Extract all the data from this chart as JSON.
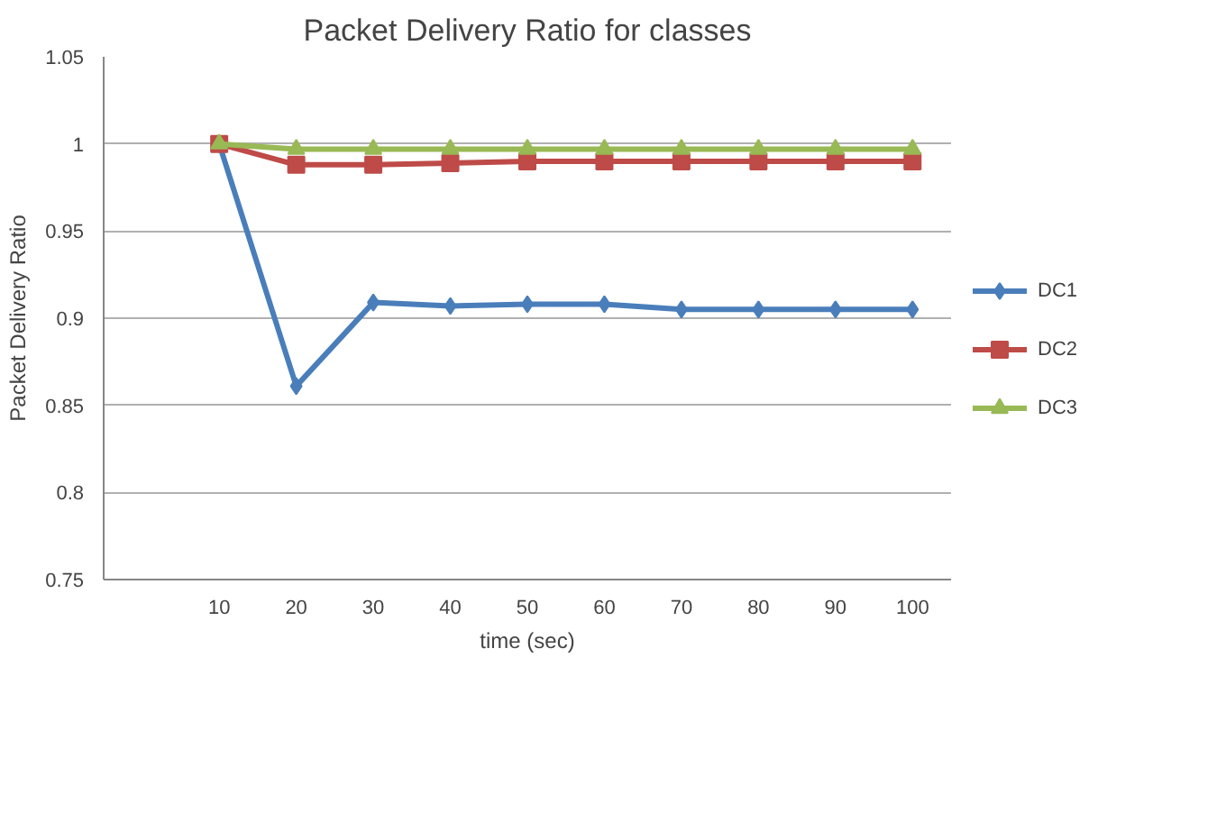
{
  "chart_data": {
    "type": "line",
    "title": "Packet Delivery Ratio for classes",
    "xlabel": "time (sec)",
    "ylabel": "Packet Delivery Ratio",
    "categories": [
      null,
      "10",
      "20",
      "30",
      "40",
      "50",
      "60",
      "70",
      "80",
      "90",
      "100"
    ],
    "series": [
      {
        "name": "DC1",
        "color": "#4a7ebb",
        "marker": "diamond",
        "values": [
          null,
          1.0,
          0.861,
          0.909,
          0.907,
          0.908,
          0.908,
          0.905,
          0.905,
          0.905,
          0.905
        ]
      },
      {
        "name": "DC2",
        "color": "#be4b48",
        "marker": "square",
        "values": [
          null,
          1.0,
          0.988,
          0.988,
          0.989,
          0.99,
          0.99,
          0.99,
          0.99,
          0.99,
          0.99
        ]
      },
      {
        "name": "DC3",
        "color": "#98b954",
        "marker": "triangle",
        "values": [
          null,
          1.0,
          0.997,
          0.997,
          0.997,
          0.997,
          0.997,
          0.997,
          0.997,
          0.997,
          0.997
        ]
      }
    ],
    "ylim": [
      0.75,
      1.05
    ],
    "yticks": [
      0.75,
      0.8,
      0.85,
      0.9,
      0.95,
      1,
      1.05
    ],
    "grid": "y",
    "legend": "right"
  }
}
